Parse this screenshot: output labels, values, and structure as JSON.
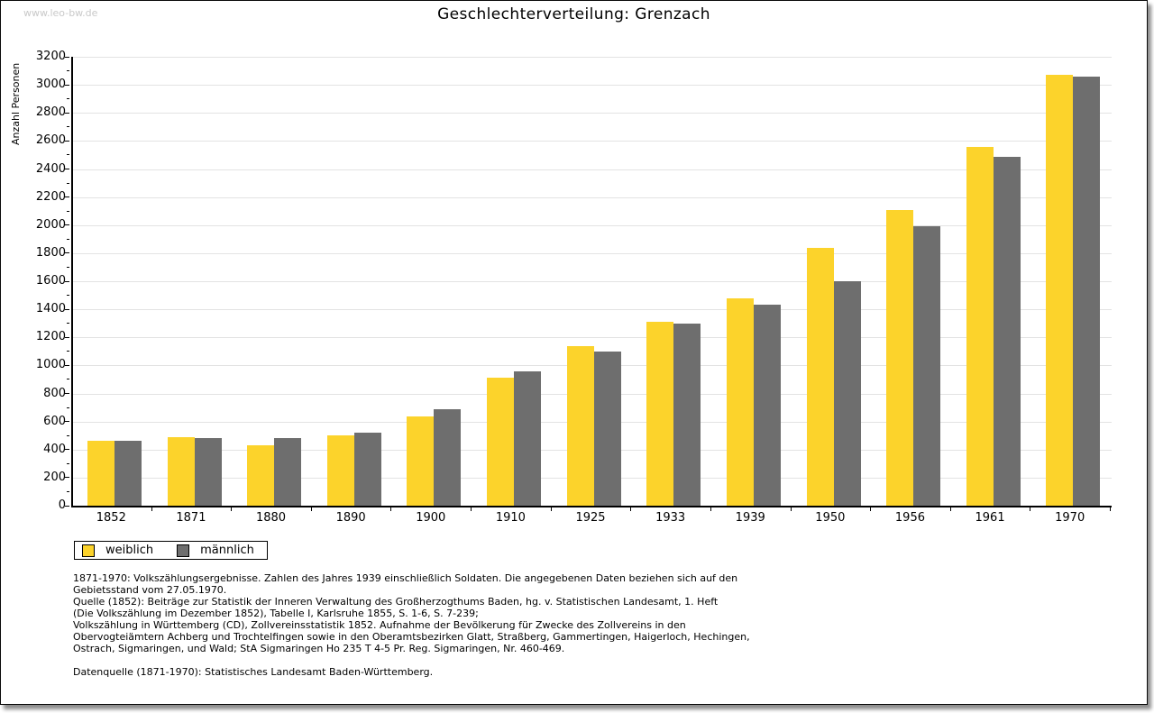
{
  "watermark": "www.leo-bw.de",
  "header": {
    "title": "Geschlechterverteilung: Grenzach"
  },
  "chart_data": {
    "type": "bar",
    "title": "Geschlechterverteilung: Grenzach",
    "xlabel": "",
    "ylabel": "Anzahl Personen",
    "ylim": [
      0,
      3200
    ],
    "ytick_step": 200,
    "minor_tick_step": 100,
    "grid": true,
    "legend_position": "bottom-left",
    "categories": [
      "1852",
      "1871",
      "1880",
      "1890",
      "1900",
      "1910",
      "1925",
      "1933",
      "1939",
      "1950",
      "1956",
      "1961",
      "1970"
    ],
    "series": [
      {
        "name": "weiblich",
        "color": "#FCD32B",
        "values": [
          465,
          490,
          430,
          500,
          635,
          910,
          1140,
          1310,
          1475,
          1835,
          2105,
          2555,
          3070
        ]
      },
      {
        "name": "männlich",
        "color": "#6E6E6E",
        "values": [
          460,
          485,
          480,
          520,
          690,
          955,
          1100,
          1300,
          1430,
          1600,
          1995,
          2490,
          3060
        ]
      }
    ]
  },
  "footer": {
    "lines": [
      "1871-1970: Volkszählungsergebnisse. Zahlen des Jahres 1939 einschließlich Soldaten. Die angegebenen Daten beziehen sich auf den",
      "Gebietsstand vom 27.05.1970.",
      "Quelle (1852): Beiträge zur Statistik der Inneren Verwaltung des Großherzogthums Baden, hg. v. Statistischen Landesamt, 1. Heft",
      "(Die Volkszählung im Dezember 1852), Tabelle I, Karlsruhe 1855, S. 1-6, S. 7-239;",
      "Volkszählung in Württemberg (CD), Zollvereinsstatistik 1852. Aufnahme der Bevölkerung für Zwecke des Zollvereins in den",
      "Obervogteiämtern Achberg und Trochtelfingen sowie in den Oberamtsbezirken Glatt, Straßberg, Gammertingen, Haigerloch, Hechingen,",
      "Ostrach, Sigmaringen, und Wald; StA Sigmaringen Ho 235 T 4-5 Pr. Reg. Sigmaringen, Nr. 460-469.",
      "",
      "Datenquelle (1871-1970): Statistisches Landesamt Baden-Württemberg."
    ]
  },
  "colors": {
    "weiblich": "#FCD32B",
    "maennlich": "#6E6E6E",
    "gridline": "#e3e3e3",
    "axis": "#000000",
    "watermark": "#c9c9c9",
    "frame_border": "#0a0a0a"
  }
}
